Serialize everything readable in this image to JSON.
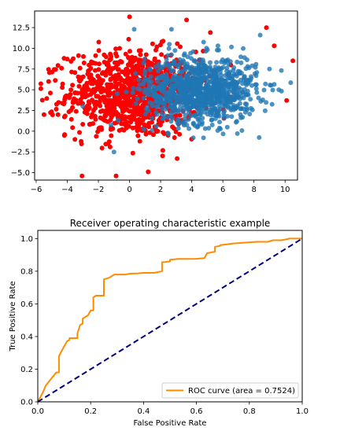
{
  "chart_data": [
    {
      "type": "scatter",
      "title": "",
      "xlabel": "",
      "ylabel": "",
      "xlim": [
        -6.1,
        10.8
      ],
      "ylim": [
        -5.9,
        14.5
      ],
      "xticks": [
        -6,
        -4,
        -2,
        0,
        2,
        4,
        6,
        8,
        10
      ],
      "yticks": [
        -5.0,
        -2.5,
        0.0,
        2.5,
        5.0,
        7.5,
        10.0,
        12.5
      ],
      "xtick_labels": [
        "−6",
        "−4",
        "−2",
        "0",
        "2",
        "4",
        "6",
        "8",
        "10"
      ],
      "ytick_labels": [
        "−5.0",
        "−2.5",
        "0.0",
        "2.5",
        "5.0",
        "7.5",
        "10.0",
        "12.5"
      ],
      "grid": false,
      "series": [
        {
          "color": "#ff0000",
          "cluster": {
            "center": [
              0.2,
              4.5
            ],
            "spread": [
              2.1,
              2.6
            ],
            "count": 1000
          },
          "points": [
            [
              -5.5,
              2.0
            ],
            [
              -5.2,
              6.0
            ],
            [
              0.0,
              13.8
            ],
            [
              -4.0,
              8.7
            ],
            [
              1.2,
              -4.9
            ],
            [
              10.5,
              8.5
            ],
            [
              10.1,
              3.7
            ],
            [
              9.3,
              10.3
            ],
            [
              8.8,
              12.5
            ],
            [
              5.2,
              11.9
            ]
          ]
        },
        {
          "color": "#1f77b4",
          "cluster": {
            "center": [
              4.6,
              5.0
            ],
            "spread": [
              1.8,
              2.0
            ],
            "count": 1000
          },
          "points": [
            [
              0.3,
              12.3
            ],
            [
              -3.0,
              3.0
            ],
            [
              9.6,
              5.0
            ],
            [
              8.4,
              11.6
            ],
            [
              -1.0,
              -2.5
            ],
            [
              4.1,
              -0.8
            ],
            [
              2.7,
              12.3
            ],
            [
              9.0,
              7.5
            ]
          ]
        }
      ]
    },
    {
      "type": "line",
      "title": "Receiver operating characteristic example",
      "xlabel": "False Positive Rate",
      "ylabel": "True Positive Rate",
      "xlim": [
        0.0,
        1.0
      ],
      "ylim": [
        0.0,
        1.05
      ],
      "xticks": [
        0.0,
        0.2,
        0.4,
        0.6,
        0.8,
        1.0
      ],
      "yticks": [
        0.0,
        0.2,
        0.4,
        0.6,
        0.8,
        1.0
      ],
      "xtick_labels": [
        "0.0",
        "0.2",
        "0.4",
        "0.6",
        "0.8",
        "1.0"
      ],
      "ytick_labels": [
        "0.0",
        "0.2",
        "0.4",
        "0.6",
        "0.8",
        "1.0"
      ],
      "grid": false,
      "legend_position": "lower-right",
      "series": [
        {
          "name": "ROC curve (area = 0.7524)",
          "color": "#ff8c00",
          "style": "solid",
          "x": [
            0.0,
            0.01,
            0.02,
            0.03,
            0.04,
            0.05,
            0.06,
            0.07,
            0.08,
            0.08,
            0.09,
            0.1,
            0.11,
            0.12,
            0.12,
            0.14,
            0.15,
            0.15,
            0.16,
            0.17,
            0.17,
            0.18,
            0.19,
            0.2,
            0.21,
            0.21,
            0.22,
            0.22,
            0.25,
            0.25,
            0.27,
            0.28,
            0.29,
            0.3,
            0.33,
            0.35,
            0.38,
            0.4,
            0.44,
            0.47,
            0.47,
            0.48,
            0.5,
            0.5,
            0.53,
            0.58,
            0.6,
            0.63,
            0.64,
            0.67,
            0.67,
            0.69,
            0.69,
            0.74,
            0.78,
            0.83,
            0.87,
            0.88,
            0.89,
            0.92,
            0.94,
            0.95,
            0.96,
            0.97,
            1.0
          ],
          "y": [
            0.0,
            0.03,
            0.06,
            0.1,
            0.12,
            0.14,
            0.16,
            0.18,
            0.18,
            0.28,
            0.31,
            0.34,
            0.37,
            0.38,
            0.39,
            0.39,
            0.39,
            0.42,
            0.47,
            0.48,
            0.51,
            0.52,
            0.53,
            0.56,
            0.56,
            0.64,
            0.65,
            0.65,
            0.65,
            0.75,
            0.76,
            0.77,
            0.78,
            0.78,
            0.78,
            0.785,
            0.787,
            0.79,
            0.79,
            0.8,
            0.855,
            0.856,
            0.86,
            0.87,
            0.875,
            0.875,
            0.876,
            0.88,
            0.91,
            0.92,
            0.95,
            0.955,
            0.96,
            0.97,
            0.975,
            0.98,
            0.98,
            0.985,
            0.99,
            0.99,
            0.995,
            1.0,
            1.0,
            1.0,
            1.0
          ]
        },
        {
          "color": "#000080",
          "style": "dashed",
          "x": [
            0.0,
            1.0
          ],
          "y": [
            0.0,
            1.0
          ]
        }
      ]
    }
  ]
}
